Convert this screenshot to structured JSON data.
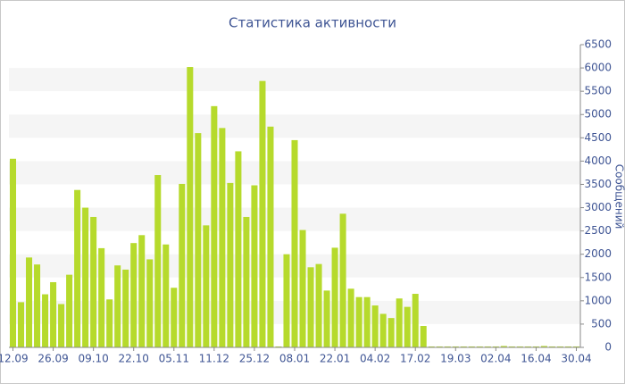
{
  "chart_data": {
    "type": "bar",
    "title": "Статистика активности",
    "y_label": "Сообщений",
    "categories": [
      "12.09",
      null,
      null,
      null,
      null,
      "26.09",
      null,
      null,
      null,
      null,
      "09.10",
      null,
      null,
      null,
      null,
      "22.10",
      null,
      null,
      null,
      null,
      "05.11",
      null,
      null,
      null,
      null,
      "11.12",
      null,
      null,
      null,
      null,
      "25.12",
      null,
      null,
      null,
      null,
      "08.01",
      null,
      null,
      null,
      null,
      "22.01",
      null,
      null,
      null,
      null,
      "04.02",
      null,
      null,
      null,
      null,
      "17.02",
      null,
      null,
      null,
      null,
      "19.03",
      null,
      null,
      null,
      null,
      "02.04",
      null,
      null,
      null,
      null,
      "16.04",
      null,
      null,
      null,
      null,
      "30.04"
    ],
    "values": [
      4050,
      970,
      1930,
      1780,
      1140,
      1400,
      930,
      1560,
      3380,
      3000,
      2800,
      2130,
      1030,
      1760,
      1670,
      2240,
      2410,
      1890,
      3700,
      2210,
      1280,
      3510,
      6020,
      4600,
      2620,
      5180,
      4710,
      3530,
      4210,
      2800,
      3480,
      5720,
      4740,
      20,
      2000,
      4450,
      2520,
      1720,
      1790,
      1220,
      2140,
      2870,
      1260,
      1080,
      1080,
      900,
      720,
      630,
      1050,
      870,
      1150,
      460,
      20,
      20,
      20,
      20,
      20,
      20,
      20,
      20,
      20,
      30,
      20,
      20,
      20,
      20,
      30,
      20,
      20,
      20,
      20
    ],
    "color": "#b6da2c",
    "ylim": [
      0,
      6500
    ],
    "yticks": [
      0,
      500,
      1000,
      1500,
      2000,
      2500,
      3000,
      3500,
      4000,
      4500,
      5000,
      5500,
      6000,
      6500
    ],
    "grid": true
  }
}
